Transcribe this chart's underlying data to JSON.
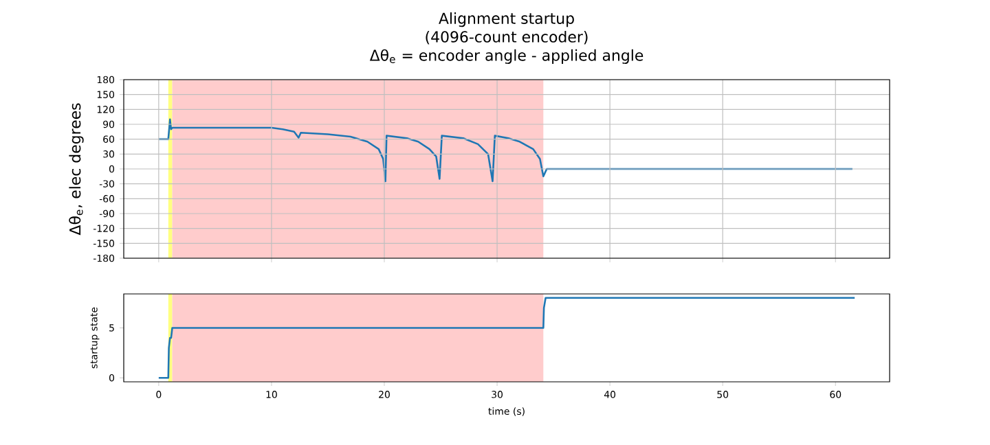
{
  "chart_data": [
    {
      "type": "line",
      "title": "Alignment startup",
      "subtitle": "(4096-count encoder)",
      "annotations": [
        "Δθ$_{e}$ = encoder angle - applied angle"
      ],
      "ylabel": "Δθ$_{e}$, elec degrees",
      "xlim": [
        -3.1,
        64.8
      ],
      "ylim": [
        -180,
        180
      ],
      "xticks": [
        {
          "value": 0,
          "label": null
        },
        {
          "value": 10,
          "label": null
        },
        {
          "value": 20,
          "label": null
        },
        {
          "value": 30,
          "label": null
        },
        {
          "value": 40,
          "label": null
        },
        {
          "value": 50,
          "label": null
        },
        {
          "value": 60,
          "label": null
        }
      ],
      "yticks": [
        -180,
        -150,
        -120,
        -90,
        -60,
        -30,
        0,
        30,
        60,
        90,
        120,
        150,
        180
      ],
      "tick_labels": "y",
      "grid": true,
      "bands": [
        {
          "axis": "x",
          "from": 0.85,
          "to": 1.2,
          "color": "#ffff80"
        },
        {
          "axis": "x",
          "from": 1.2,
          "to": 34.1,
          "color": "#ffcccc"
        }
      ],
      "series": [
        {
          "color": "#1f77b4",
          "x": [
            0,
            0.85,
            1.0,
            1.1,
            1.2,
            5,
            10,
            11,
            12,
            12.4,
            12.6,
            15,
            17,
            18.5,
            19.5,
            19.9,
            20.1,
            20.2,
            22,
            23,
            24,
            24.6,
            24.9,
            25.1,
            27,
            28.3,
            29.2,
            29.6,
            29.8,
            31,
            32,
            33.2,
            33.8,
            34.1,
            34.4,
            45,
            61.5
          ],
          "values": [
            60,
            60,
            100,
            80,
            83,
            83,
            83,
            80,
            75,
            63,
            73,
            70,
            65,
            55,
            40,
            20,
            -25,
            67,
            62,
            55,
            40,
            25,
            -20,
            67,
            62,
            50,
            30,
            -25,
            67,
            62,
            55,
            40,
            20,
            -15,
            0,
            0,
            0
          ]
        }
      ]
    },
    {
      "type": "line",
      "xlabel": "time (s)",
      "ylabel": "startup state",
      "xlim": [
        -3.1,
        64.8
      ],
      "ylim": [
        -0.4,
        8.4
      ],
      "xticks": [
        0,
        10,
        20,
        30,
        40,
        50,
        60
      ],
      "yticks": [
        0,
        5
      ],
      "grid": false,
      "bands": [
        {
          "axis": "x",
          "from": 0.85,
          "to": 1.2,
          "color": "#ffff80"
        },
        {
          "axis": "x",
          "from": 1.2,
          "to": 34.1,
          "color": "#ffcccc"
        }
      ],
      "series": [
        {
          "color": "#1f77b4",
          "x": [
            0,
            0.85,
            0.9,
            1.0,
            1.1,
            1.2,
            20,
            34.1,
            34.15,
            34.3,
            61.7
          ],
          "values": [
            0,
            0,
            3,
            4,
            4,
            5,
            5,
            5,
            7,
            8,
            8
          ]
        }
      ]
    }
  ]
}
